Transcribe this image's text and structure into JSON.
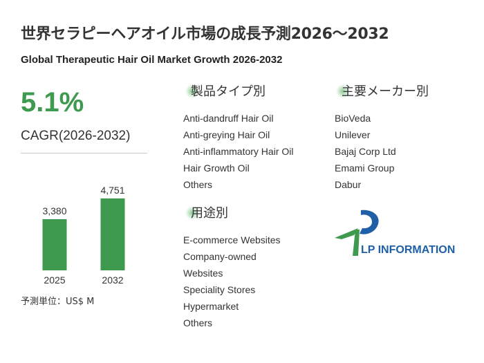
{
  "title_ja": "世界セラピーヘアオイル市場の成長予測2026～2032",
  "title_en": "Global Therapeutic Hair Oil Market Growth 2026-2032",
  "cagr": {
    "value": "5.1%",
    "label": "CAGR(2026-2032)"
  },
  "chart_data": {
    "type": "bar",
    "categories": [
      "2025",
      "2032"
    ],
    "values": [
      3380,
      4751
    ],
    "data_labels": [
      "3,380",
      "4,751"
    ],
    "bar_color": "#3d9a4f",
    "ylim": [
      0,
      5000
    ]
  },
  "unit_label": "予測単位：US$ M",
  "sections": {
    "type": {
      "title": "製品タイプ別",
      "items": [
        "Anti-dandruff Hair Oil",
        "Anti-greying Hair Oil",
        "Anti-inflammatory Hair Oil",
        "Hair Growth Oil",
        "Others"
      ]
    },
    "application": {
      "title": "用途別",
      "items": [
        "E-commerce Websites",
        "Company-owned",
        "Websites",
        "Speciality Stores",
        "Hypermarket",
        "Others"
      ]
    },
    "manufacturers": {
      "title": "主要メーカー別",
      "items": [
        "BioVeda",
        "Unilever",
        "Bajaj Corp Ltd",
        "Emami Group",
        "Dabur"
      ]
    }
  },
  "logo": {
    "text": "LP INFORMATION",
    "colors": {
      "blue": "#1e5fa8",
      "green": "#3d9a4f"
    }
  }
}
